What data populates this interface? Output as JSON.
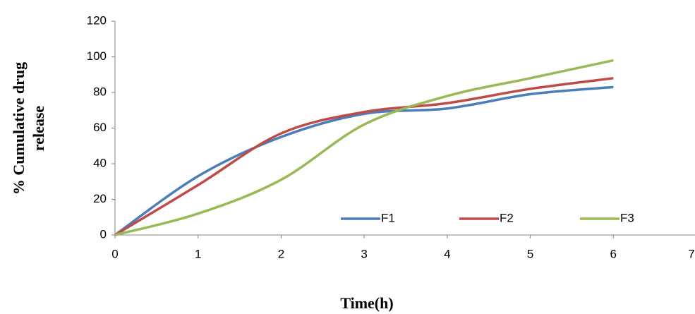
{
  "chart_data": {
    "type": "line",
    "xlabel": "Time(h)",
    "ylabel": [
      "% Cumulative drug",
      "release"
    ],
    "x": [
      0,
      1,
      2,
      3,
      4,
      5,
      6
    ],
    "series": [
      {
        "name": "F1",
        "color": "#4a7ebb",
        "values": [
          0,
          33,
          55,
          68,
          71,
          79,
          83
        ]
      },
      {
        "name": "F2",
        "color": "#be4b48",
        "values": [
          0,
          28,
          57,
          69,
          74,
          82,
          88
        ]
      },
      {
        "name": "F3",
        "color": "#98b954",
        "values": [
          0,
          12,
          31,
          62,
          78,
          88,
          98
        ]
      }
    ],
    "xlim": [
      0,
      7
    ],
    "xticks": [
      0,
      1,
      2,
      3,
      4,
      5,
      6,
      7
    ],
    "ylim": [
      0,
      120
    ],
    "yticks": [
      0,
      20,
      40,
      60,
      80,
      100,
      120
    ],
    "smooth": true,
    "grid": false,
    "legend": "bottom"
  }
}
